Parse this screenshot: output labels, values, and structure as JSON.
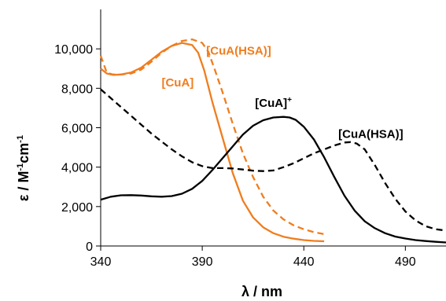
{
  "chart_data": {
    "type": "line",
    "xlabel": "λ / nm",
    "ylabel_main": "ε / M",
    "ylabel_sup1": "-1",
    "ylabel_mid": "cm",
    "ylabel_sup2": "-1",
    "xlim": [
      340,
      510
    ],
    "ylim": [
      0,
      12000
    ],
    "xticks": [
      340,
      390,
      440,
      490
    ],
    "xtick_labels": [
      "340",
      "390",
      "440",
      "490"
    ],
    "yticks": [
      0,
      2000,
      4000,
      6000,
      8000,
      10000
    ],
    "ytick_labels": [
      "0",
      "2,000",
      "4,000",
      "6,000",
      "8,000",
      "10,000"
    ],
    "grid": false,
    "legend": "none",
    "series": [
      {
        "color": "#f07d1e",
        "dash": "solid",
        "x": [
          340,
          343,
          346,
          350,
          355,
          360,
          365,
          370,
          375,
          380,
          385,
          388,
          391,
          395,
          400,
          405,
          410,
          415,
          420,
          425,
          430,
          435,
          440,
          445,
          450
        ],
        "y": [
          9000,
          8750,
          8680,
          8700,
          8800,
          9050,
          9450,
          9850,
          10150,
          10300,
          10200,
          9800,
          8900,
          7300,
          5500,
          3700,
          2300,
          1450,
          950,
          650,
          470,
          370,
          300,
          260,
          240
        ]
      },
      {
        "color": "#f07d1e",
        "dash": "dashed",
        "x": [
          340,
          343,
          346,
          350,
          355,
          360,
          365,
          370,
          375,
          380,
          385,
          390,
          393,
          396,
          400,
          405,
          410,
          415,
          420,
          425,
          430,
          435,
          440,
          445,
          450
        ],
        "y": [
          9650,
          8800,
          8700,
          8700,
          8750,
          8950,
          9350,
          9800,
          10150,
          10400,
          10480,
          10300,
          9850,
          9000,
          7800,
          6200,
          4700,
          3500,
          2500,
          1800,
          1350,
          1050,
          850,
          700,
          600
        ]
      },
      {
        "color": "#000000",
        "dash": "solid",
        "x": [
          340,
          345,
          350,
          355,
          360,
          365,
          370,
          375,
          380,
          385,
          390,
          395,
          400,
          405,
          410,
          415,
          420,
          425,
          430,
          433,
          436,
          440,
          445,
          450,
          455,
          460,
          465,
          470,
          475,
          480,
          485,
          490,
          495,
          500,
          505,
          510
        ],
        "y": [
          2350,
          2500,
          2570,
          2580,
          2560,
          2520,
          2500,
          2530,
          2650,
          2900,
          3300,
          3850,
          4450,
          5050,
          5650,
          6100,
          6380,
          6520,
          6550,
          6520,
          6400,
          6050,
          5400,
          4500,
          3500,
          2550,
          1800,
          1250,
          900,
          650,
          480,
          380,
          300,
          250,
          210,
          180
        ]
      },
      {
        "color": "#000000",
        "dash": "dashed",
        "x": [
          340,
          345,
          350,
          355,
          360,
          365,
          370,
          375,
          380,
          385,
          390,
          395,
          400,
          405,
          410,
          415,
          420,
          425,
          430,
          435,
          440,
          445,
          450,
          455,
          460,
          463,
          466,
          470,
          475,
          480,
          485,
          490,
          495,
          500,
          505,
          510
        ],
        "y": [
          7950,
          7500,
          7050,
          6600,
          6150,
          5700,
          5300,
          4900,
          4550,
          4250,
          4050,
          3950,
          3950,
          3930,
          3880,
          3820,
          3800,
          3830,
          4000,
          4200,
          4450,
          4700,
          4900,
          5100,
          5250,
          5270,
          5200,
          4900,
          4100,
          3200,
          2400,
          1750,
          1300,
          1000,
          850,
          780
        ]
      }
    ],
    "annotations": [
      {
        "text": "[CuA(HSA)]",
        "color": "#f07d1e",
        "x": 392,
        "y": 9700
      },
      {
        "text": "[CuA]",
        "color": "#f07d1e",
        "x": 370,
        "y": 8100
      },
      {
        "text": "[CuA]",
        "sup": "+",
        "color": "#000000",
        "x": 416,
        "y": 7050
      },
      {
        "text": "[CuA(HSA)]",
        "color": "#000000",
        "x": 457,
        "y": 5480
      }
    ]
  }
}
